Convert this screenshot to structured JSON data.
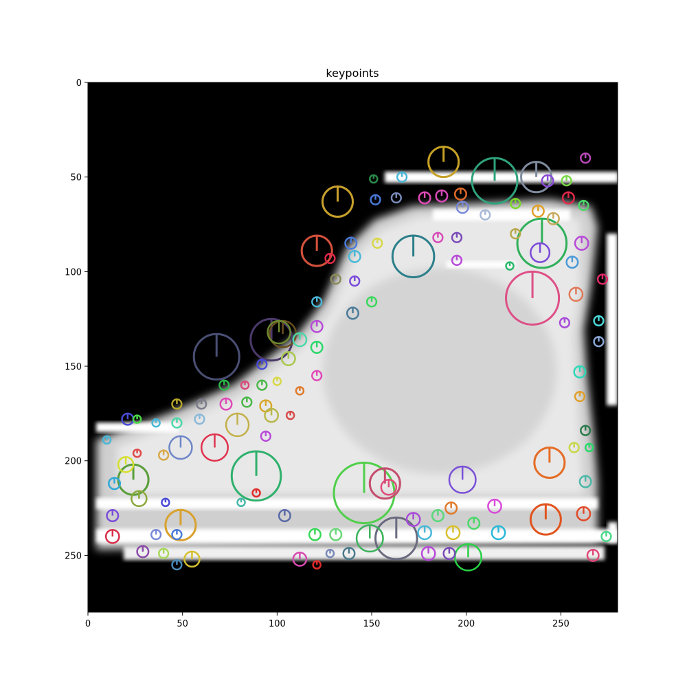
{
  "chart_data": {
    "type": "image",
    "title": "keypoints",
    "xlabel": "",
    "ylabel": "",
    "xlim": [
      0,
      280
    ],
    "ylim": [
      280,
      0
    ],
    "x_ticks": [
      0,
      50,
      100,
      150,
      200,
      250
    ],
    "y_ticks": [
      0,
      50,
      100,
      150,
      200,
      250
    ],
    "x_tick_labels": [
      "0",
      "50",
      "100",
      "150",
      "200",
      "250"
    ],
    "y_tick_labels": [
      "0",
      "50",
      "100",
      "150",
      "200",
      "250"
    ],
    "grid": false,
    "image_description_values": {
      "background_color": "#000000",
      "shoe_fill_color": "#e6e6e6",
      "edge_color": "#ffffff"
    },
    "keypoints": [
      {
        "x": 215,
        "y": 52,
        "size": 24,
        "color": "#2fa37c"
      },
      {
        "x": 188,
        "y": 42,
        "size": 16,
        "color": "#c6a125"
      },
      {
        "x": 237,
        "y": 50,
        "size": 16,
        "color": "#7f8b9e"
      },
      {
        "x": 132,
        "y": 63,
        "size": 16,
        "color": "#c8a02c"
      },
      {
        "x": 121,
        "y": 89,
        "size": 16,
        "color": "#d4513c"
      },
      {
        "x": 172,
        "y": 92,
        "size": 22,
        "color": "#2c7f8a"
      },
      {
        "x": 240,
        "y": 85,
        "size": 26,
        "color": "#2fb05a"
      },
      {
        "x": 235,
        "y": 114,
        "size": 28,
        "color": "#de4f86"
      },
      {
        "x": 68,
        "y": 145,
        "size": 24,
        "color": "#4a4f73"
      },
      {
        "x": 97,
        "y": 136,
        "size": 22,
        "color": "#4b3a6a"
      },
      {
        "x": 103,
        "y": 133,
        "size": 14,
        "color": "#6a5020"
      },
      {
        "x": 89,
        "y": 208,
        "size": 26,
        "color": "#2fb06d"
      },
      {
        "x": 146,
        "y": 217,
        "size": 32,
        "color": "#4fcf4a"
      },
      {
        "x": 157,
        "y": 212,
        "size": 16,
        "color": "#c44e6e"
      },
      {
        "x": 198,
        "y": 210,
        "size": 14,
        "color": "#7a50d8"
      },
      {
        "x": 244,
        "y": 201,
        "size": 16,
        "color": "#e56d26"
      },
      {
        "x": 242,
        "y": 231,
        "size": 16,
        "color": "#e0541e"
      },
      {
        "x": 201,
        "y": 251,
        "size": 14,
        "color": "#27d045"
      },
      {
        "x": 163,
        "y": 241,
        "size": 22,
        "color": "#6a6a7f"
      },
      {
        "x": 149,
        "y": 241,
        "size": 14,
        "color": "#3bb25a"
      },
      {
        "x": 24,
        "y": 210,
        "size": 16,
        "color": "#5b9e3a"
      },
      {
        "x": 49,
        "y": 234,
        "size": 16,
        "color": "#d8a22f"
      },
      {
        "x": 67,
        "y": 193,
        "size": 14,
        "color": "#e0334f"
      },
      {
        "x": 79,
        "y": 181,
        "size": 12,
        "color": "#c3b04a"
      },
      {
        "x": 49,
        "y": 193,
        "size": 12,
        "color": "#6e86c8"
      },
      {
        "x": 101,
        "y": 132,
        "size": 12,
        "color": "#6e8a2f"
      },
      {
        "x": 20,
        "y": 202,
        "size": 8,
        "color": "#d6df2f"
      },
      {
        "x": 14,
        "y": 212,
        "size": 6,
        "color": "#2fa8d8"
      },
      {
        "x": 27,
        "y": 220,
        "size": 8,
        "color": "#8aa83a"
      },
      {
        "x": 13,
        "y": 229,
        "size": 6,
        "color": "#7a4cd8"
      },
      {
        "x": 13,
        "y": 240,
        "size": 7,
        "color": "#d8304a"
      },
      {
        "x": 29,
        "y": 248,
        "size": 6,
        "color": "#8a4aa8"
      },
      {
        "x": 40,
        "y": 249,
        "size": 5,
        "color": "#a8d85a"
      },
      {
        "x": 47,
        "y": 255,
        "size": 5,
        "color": "#4a8ab8"
      },
      {
        "x": 55,
        "y": 252,
        "size": 8,
        "color": "#d4c02f"
      },
      {
        "x": 112,
        "y": 252,
        "size": 7,
        "color": "#d84ab0"
      },
      {
        "x": 121,
        "y": 255,
        "size": 4,
        "color": "#e02a2a"
      },
      {
        "x": 128,
        "y": 249,
        "size": 4,
        "color": "#7a8ab8"
      },
      {
        "x": 138,
        "y": 249,
        "size": 6,
        "color": "#4a7a8a"
      },
      {
        "x": 120,
        "y": 239,
        "size": 6,
        "color": "#3ad85a"
      },
      {
        "x": 131,
        "y": 239,
        "size": 6,
        "color": "#6ad87a"
      },
      {
        "x": 36,
        "y": 239,
        "size": 5,
        "color": "#7a8ad8"
      },
      {
        "x": 47,
        "y": 239,
        "size": 5,
        "color": "#4a7ad8"
      },
      {
        "x": 104,
        "y": 229,
        "size": 6,
        "color": "#5a6aa8"
      },
      {
        "x": 159,
        "y": 214,
        "size": 8,
        "color": "#e04a7a"
      },
      {
        "x": 172,
        "y": 231,
        "size": 7,
        "color": "#a84ad8"
      },
      {
        "x": 178,
        "y": 238,
        "size": 7,
        "color": "#4ab8d8"
      },
      {
        "x": 180,
        "y": 249,
        "size": 7,
        "color": "#b84ad8"
      },
      {
        "x": 191,
        "y": 249,
        "size": 6,
        "color": "#7a4ab8"
      },
      {
        "x": 193,
        "y": 238,
        "size": 7,
        "color": "#d8c02f"
      },
      {
        "x": 185,
        "y": 229,
        "size": 6,
        "color": "#5ad87a"
      },
      {
        "x": 192,
        "y": 225,
        "size": 6,
        "color": "#e07a2a"
      },
      {
        "x": 204,
        "y": 233,
        "size": 6,
        "color": "#4ad86a"
      },
      {
        "x": 215,
        "y": 224,
        "size": 7,
        "color": "#d84ad8"
      },
      {
        "x": 217,
        "y": 238,
        "size": 7,
        "color": "#2ab8d8"
      },
      {
        "x": 262,
        "y": 228,
        "size": 7,
        "color": "#e04a2a"
      },
      {
        "x": 263,
        "y": 211,
        "size": 6,
        "color": "#4ab8a8"
      },
      {
        "x": 267,
        "y": 250,
        "size": 6,
        "color": "#e04a7a"
      },
      {
        "x": 274,
        "y": 240,
        "size": 5,
        "color": "#4ad88a"
      },
      {
        "x": 257,
        "y": 193,
        "size": 5,
        "color": "#c8d84a"
      },
      {
        "x": 265,
        "y": 193,
        "size": 4,
        "color": "#2ad86a"
      },
      {
        "x": 260,
        "y": 153,
        "size": 6,
        "color": "#2ad8b8"
      },
      {
        "x": 260,
        "y": 166,
        "size": 5,
        "color": "#e0a02a"
      },
      {
        "x": 263,
        "y": 184,
        "size": 5,
        "color": "#2a7a4a"
      },
      {
        "x": 258,
        "y": 112,
        "size": 7,
        "color": "#e07a5a"
      },
      {
        "x": 252,
        "y": 127,
        "size": 5,
        "color": "#a84ad8"
      },
      {
        "x": 270,
        "y": 126,
        "size": 5,
        "color": "#4ad8d8"
      },
      {
        "x": 270,
        "y": 137,
        "size": 5,
        "color": "#8aa8d8"
      },
      {
        "x": 272,
        "y": 104,
        "size": 5,
        "color": "#e02a6a"
      },
      {
        "x": 261,
        "y": 85,
        "size": 7,
        "color": "#b84ad8"
      },
      {
        "x": 256,
        "y": 95,
        "size": 6,
        "color": "#4a9ad8"
      },
      {
        "x": 262,
        "y": 65,
        "size": 5,
        "color": "#4ad86a"
      },
      {
        "x": 263,
        "y": 40,
        "size": 5,
        "color": "#b84ab8"
      },
      {
        "x": 253,
        "y": 52,
        "size": 5,
        "color": "#7ad84a"
      },
      {
        "x": 254,
        "y": 61,
        "size": 6,
        "color": "#e02a4a"
      },
      {
        "x": 243,
        "y": 52,
        "size": 6,
        "color": "#8a4ad8"
      },
      {
        "x": 246,
        "y": 72,
        "size": 6,
        "color": "#c8a85a"
      },
      {
        "x": 238,
        "y": 68,
        "size": 6,
        "color": "#e0a02a"
      },
      {
        "x": 239,
        "y": 90,
        "size": 10,
        "color": "#7a4ad8"
      },
      {
        "x": 226,
        "y": 64,
        "size": 5,
        "color": "#7ad82a"
      },
      {
        "x": 226,
        "y": 80,
        "size": 5,
        "color": "#b8a84a"
      },
      {
        "x": 210,
        "y": 70,
        "size": 5,
        "color": "#a8b8d8"
      },
      {
        "x": 197,
        "y": 59,
        "size": 6,
        "color": "#e06a2a"
      },
      {
        "x": 198,
        "y": 66,
        "size": 6,
        "color": "#7a8ad8"
      },
      {
        "x": 187,
        "y": 60,
        "size": 6,
        "color": "#d84ab8"
      },
      {
        "x": 178,
        "y": 61,
        "size": 6,
        "color": "#e04ab8"
      },
      {
        "x": 163,
        "y": 61,
        "size": 5,
        "color": "#7a8ab8"
      },
      {
        "x": 166,
        "y": 50,
        "size": 5,
        "color": "#4ab8d8"
      },
      {
        "x": 151,
        "y": 51,
        "size": 4,
        "color": "#2a8a4a"
      },
      {
        "x": 152,
        "y": 62,
        "size": 5,
        "color": "#4a7ad8"
      },
      {
        "x": 185,
        "y": 82,
        "size": 5,
        "color": "#d84ab8"
      },
      {
        "x": 195,
        "y": 82,
        "size": 5,
        "color": "#7a4ab8"
      },
      {
        "x": 195,
        "y": 94,
        "size": 5,
        "color": "#b84ad8"
      },
      {
        "x": 223,
        "y": 97,
        "size": 4,
        "color": "#2ab86a"
      },
      {
        "x": 153,
        "y": 85,
        "size": 5,
        "color": "#d8d84a"
      },
      {
        "x": 139,
        "y": 85,
        "size": 6,
        "color": "#4a7ad8"
      },
      {
        "x": 141,
        "y": 92,
        "size": 6,
        "color": "#4ab8d8"
      },
      {
        "x": 141,
        "y": 105,
        "size": 5,
        "color": "#7a4ad8"
      },
      {
        "x": 131,
        "y": 104,
        "size": 5,
        "color": "#8a8a5a"
      },
      {
        "x": 128,
        "y": 93,
        "size": 5,
        "color": "#e02a4a"
      },
      {
        "x": 150,
        "y": 116,
        "size": 5,
        "color": "#3ad85a"
      },
      {
        "x": 140,
        "y": 122,
        "size": 6,
        "color": "#4a7a9a"
      },
      {
        "x": 121,
        "y": 116,
        "size": 5,
        "color": "#4ab8d8"
      },
      {
        "x": 121,
        "y": 129,
        "size": 6,
        "color": "#b84ad8"
      },
      {
        "x": 121,
        "y": 140,
        "size": 6,
        "color": "#2ad86a"
      },
      {
        "x": 112,
        "y": 136,
        "size": 7,
        "color": "#4ad8a8"
      },
      {
        "x": 106,
        "y": 146,
        "size": 7,
        "color": "#a8c84a"
      },
      {
        "x": 92,
        "y": 149,
        "size": 5,
        "color": "#4a4ad8"
      },
      {
        "x": 121,
        "y": 155,
        "size": 5,
        "color": "#e04ab8"
      },
      {
        "x": 112,
        "y": 163,
        "size": 4,
        "color": "#e07a2a"
      },
      {
        "x": 100,
        "y": 158,
        "size": 4,
        "color": "#d8d84a"
      },
      {
        "x": 92,
        "y": 160,
        "size": 5,
        "color": "#4ab84a"
      },
      {
        "x": 83,
        "y": 160,
        "size": 4,
        "color": "#d84a7a"
      },
      {
        "x": 72,
        "y": 160,
        "size": 5,
        "color": "#2ab84a"
      },
      {
        "x": 73,
        "y": 170,
        "size": 6,
        "color": "#e04ab8"
      },
      {
        "x": 84,
        "y": 169,
        "size": 5,
        "color": "#4ab84a"
      },
      {
        "x": 94,
        "y": 171,
        "size": 6,
        "color": "#d8a82a"
      },
      {
        "x": 97,
        "y": 176,
        "size": 7,
        "color": "#b8b84a"
      },
      {
        "x": 107,
        "y": 176,
        "size": 4,
        "color": "#d84a4a"
      },
      {
        "x": 94,
        "y": 187,
        "size": 5,
        "color": "#b84ad8"
      },
      {
        "x": 59,
        "y": 178,
        "size": 5,
        "color": "#8ab8d8"
      },
      {
        "x": 47,
        "y": 180,
        "size": 5,
        "color": "#4ad8a8"
      },
      {
        "x": 36,
        "y": 180,
        "size": 4,
        "color": "#4ab8d8"
      },
      {
        "x": 21,
        "y": 178,
        "size": 6,
        "color": "#4a4ad8"
      },
      {
        "x": 26,
        "y": 178,
        "size": 4,
        "color": "#4ad84a"
      },
      {
        "x": 47,
        "y": 170,
        "size": 5,
        "color": "#b8a82a"
      },
      {
        "x": 60,
        "y": 170,
        "size": 5,
        "color": "#7a7a8a"
      },
      {
        "x": 10,
        "y": 189,
        "size": 4,
        "color": "#4ab8d8"
      },
      {
        "x": 26,
        "y": 196,
        "size": 4,
        "color": "#e04a4a"
      },
      {
        "x": 40,
        "y": 197,
        "size": 5,
        "color": "#d8a84a"
      },
      {
        "x": 81,
        "y": 222,
        "size": 4,
        "color": "#4ab8a8"
      },
      {
        "x": 89,
        "y": 217,
        "size": 4,
        "color": "#e02a2a"
      },
      {
        "x": 41,
        "y": 222,
        "size": 4,
        "color": "#4a4ad8"
      }
    ]
  }
}
